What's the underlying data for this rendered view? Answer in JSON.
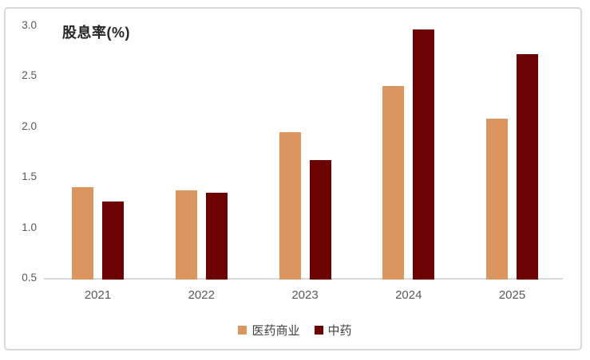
{
  "chart_data": {
    "type": "bar",
    "title": "股息率(%)",
    "categories": [
      "2021",
      "2022",
      "2023",
      "2024",
      "2025"
    ],
    "series": [
      {
        "name": "医药商业",
        "color": "#DB965F",
        "values": [
          1.41,
          1.38,
          1.96,
          2.41,
          2.09
        ]
      },
      {
        "name": "中药",
        "color": "#6B0201",
        "values": [
          1.27,
          1.36,
          1.68,
          2.97,
          2.73
        ]
      }
    ],
    "ylim": [
      0.5,
      3.0
    ],
    "yticks": [
      0.5,
      1.0,
      1.5,
      2.0,
      2.5,
      3.0
    ],
    "ytick_format": "one_decimal",
    "xlabel": "",
    "ylabel": "",
    "grid": false,
    "legend_position": "bottom",
    "axis_line_color": "#d9d9d9",
    "tick_label_color": "#595959",
    "legend_text_color": "#404040",
    "frame_border_color": "#d9d9d9"
  }
}
